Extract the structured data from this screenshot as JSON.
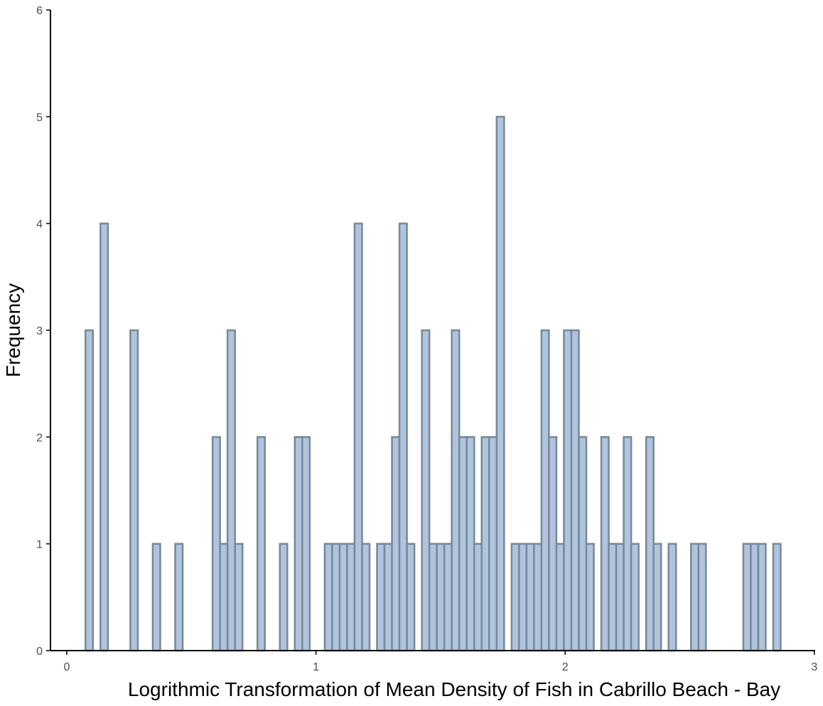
{
  "chart_data": {
    "type": "bar",
    "xlabel": "Logrithmic Transformation of Mean Density of Fish in Cabrillo Beach - Bay",
    "ylabel": "Frequency",
    "xlim": [
      -0.07,
      3.0
    ],
    "ylim": [
      0,
      6
    ],
    "x_ticks": [
      0,
      1,
      2,
      3
    ],
    "y_ticks": [
      0,
      1,
      2,
      3,
      4,
      5,
      6
    ],
    "grid": false,
    "bin_width": 0.03,
    "bins": [
      {
        "x": 0.09,
        "count": 3
      },
      {
        "x": 0.15,
        "count": 4
      },
      {
        "x": 0.27,
        "count": 3
      },
      {
        "x": 0.36,
        "count": 1
      },
      {
        "x": 0.45,
        "count": 1
      },
      {
        "x": 0.6,
        "count": 2
      },
      {
        "x": 0.63,
        "count": 1
      },
      {
        "x": 0.66,
        "count": 3
      },
      {
        "x": 0.69,
        "count": 1
      },
      {
        "x": 0.78,
        "count": 2
      },
      {
        "x": 0.87,
        "count": 1
      },
      {
        "x": 0.93,
        "count": 2
      },
      {
        "x": 0.96,
        "count": 2
      },
      {
        "x": 1.05,
        "count": 1
      },
      {
        "x": 1.08,
        "count": 1
      },
      {
        "x": 1.11,
        "count": 1
      },
      {
        "x": 1.14,
        "count": 1
      },
      {
        "x": 1.17,
        "count": 4
      },
      {
        "x": 1.2,
        "count": 1
      },
      {
        "x": 1.26,
        "count": 1
      },
      {
        "x": 1.29,
        "count": 1
      },
      {
        "x": 1.32,
        "count": 2
      },
      {
        "x": 1.35,
        "count": 4
      },
      {
        "x": 1.38,
        "count": 1
      },
      {
        "x": 1.44,
        "count": 3
      },
      {
        "x": 1.47,
        "count": 1
      },
      {
        "x": 1.5,
        "count": 1
      },
      {
        "x": 1.53,
        "count": 1
      },
      {
        "x": 1.56,
        "count": 3
      },
      {
        "x": 1.59,
        "count": 2
      },
      {
        "x": 1.62,
        "count": 2
      },
      {
        "x": 1.65,
        "count": 1
      },
      {
        "x": 1.68,
        "count": 2
      },
      {
        "x": 1.71,
        "count": 2
      },
      {
        "x": 1.74,
        "count": 5
      },
      {
        "x": 1.8,
        "count": 1
      },
      {
        "x": 1.83,
        "count": 1
      },
      {
        "x": 1.86,
        "count": 1
      },
      {
        "x": 1.89,
        "count": 1
      },
      {
        "x": 1.92,
        "count": 3
      },
      {
        "x": 1.95,
        "count": 2
      },
      {
        "x": 1.98,
        "count": 1
      },
      {
        "x": 2.01,
        "count": 3
      },
      {
        "x": 2.04,
        "count": 3
      },
      {
        "x": 2.07,
        "count": 2
      },
      {
        "x": 2.1,
        "count": 1
      },
      {
        "x": 2.16,
        "count": 2
      },
      {
        "x": 2.19,
        "count": 1
      },
      {
        "x": 2.22,
        "count": 1
      },
      {
        "x": 2.25,
        "count": 2
      },
      {
        "x": 2.28,
        "count": 1
      },
      {
        "x": 2.34,
        "count": 2
      },
      {
        "x": 2.37,
        "count": 1
      },
      {
        "x": 2.43,
        "count": 1
      },
      {
        "x": 2.52,
        "count": 1
      },
      {
        "x": 2.55,
        "count": 1
      },
      {
        "x": 2.73,
        "count": 1
      },
      {
        "x": 2.76,
        "count": 1
      },
      {
        "x": 2.79,
        "count": 1
      },
      {
        "x": 2.85,
        "count": 1
      }
    ],
    "colors": {
      "bar_fill": "#b0c4de",
      "bar_stroke": "#778899",
      "axis": "#000000",
      "tick_text": "#4d4d4d"
    }
  }
}
